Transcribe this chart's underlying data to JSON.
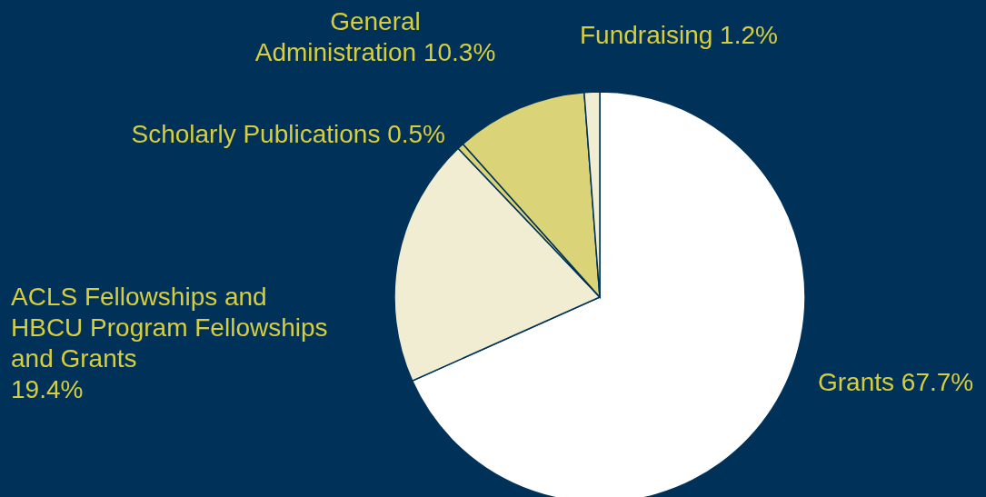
{
  "chart_data": {
    "type": "pie",
    "categories": [
      "Grants",
      "ACLS Fellowships and HBCU Program Fellowships and Grants",
      "Scholarly Publications",
      "General Administration",
      "Fundraising"
    ],
    "values": [
      67.7,
      19.4,
      0.5,
      10.3,
      1.2
    ],
    "value_labels": [
      "67.7%",
      "19.4%",
      "0.5%",
      "10.3%",
      "1.2%"
    ],
    "colors": [
      "#ffffff",
      "#f0edd3",
      "#dbd378",
      "#dbd378",
      "#f0edd3"
    ]
  }
}
